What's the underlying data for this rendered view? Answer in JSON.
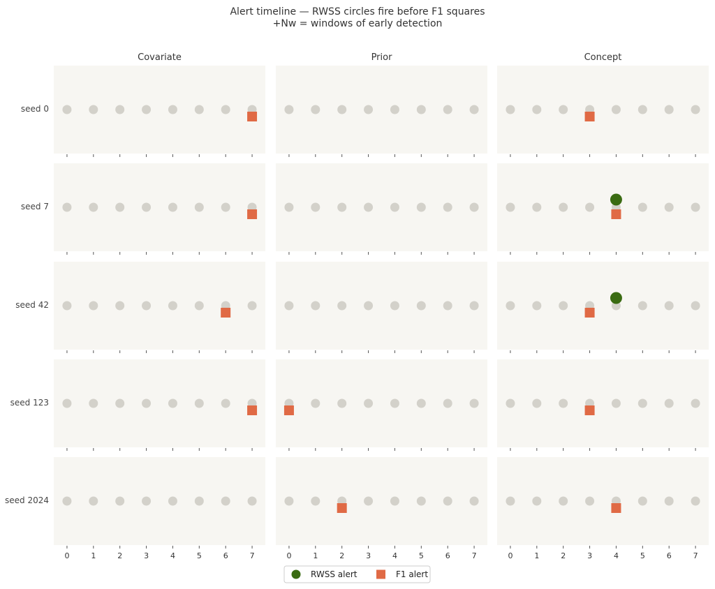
{
  "chart_data": {
    "type": "scatter",
    "title_line1": "Alert timeline — RWSS circles fire before F1 squares",
    "title_line2": "+Nw = windows of early detection",
    "columns": [
      "Covariate",
      "Prior",
      "Concept"
    ],
    "rows": [
      "seed 0",
      "seed 7",
      "seed 42",
      "seed 123",
      "seed 2024"
    ],
    "x": [
      0,
      1,
      2,
      3,
      4,
      5,
      6,
      7
    ],
    "xlim": [
      -0.5,
      7.5
    ],
    "legend": {
      "placement": "bottom-center",
      "rwss_label": "RWSS alert",
      "f1_label": "F1 alert"
    },
    "colors": {
      "panel_bg": "#f7f6f2",
      "base_marker": "#d3d1ca",
      "rwss": "#3a6b12",
      "f1": "#e06a45"
    },
    "alerts": {
      "Covariate": {
        "seed 0": {
          "rwss": null,
          "f1": 7
        },
        "seed 7": {
          "rwss": null,
          "f1": 7
        },
        "seed 42": {
          "rwss": null,
          "f1": 6
        },
        "seed 123": {
          "rwss": null,
          "f1": 7
        },
        "seed 2024": {
          "rwss": null,
          "f1": null
        }
      },
      "Prior": {
        "seed 0": {
          "rwss": null,
          "f1": null
        },
        "seed 7": {
          "rwss": null,
          "f1": null
        },
        "seed 42": {
          "rwss": null,
          "f1": null
        },
        "seed 123": {
          "rwss": null,
          "f1": 0
        },
        "seed 2024": {
          "rwss": null,
          "f1": 2
        }
      },
      "Concept": {
        "seed 0": {
          "rwss": null,
          "f1": 3
        },
        "seed 7": {
          "rwss": 4,
          "f1": 4
        },
        "seed 42": {
          "rwss": 4,
          "f1": 3
        },
        "seed 123": {
          "rwss": null,
          "f1": 3
        },
        "seed 2024": {
          "rwss": null,
          "f1": 4
        }
      }
    }
  }
}
